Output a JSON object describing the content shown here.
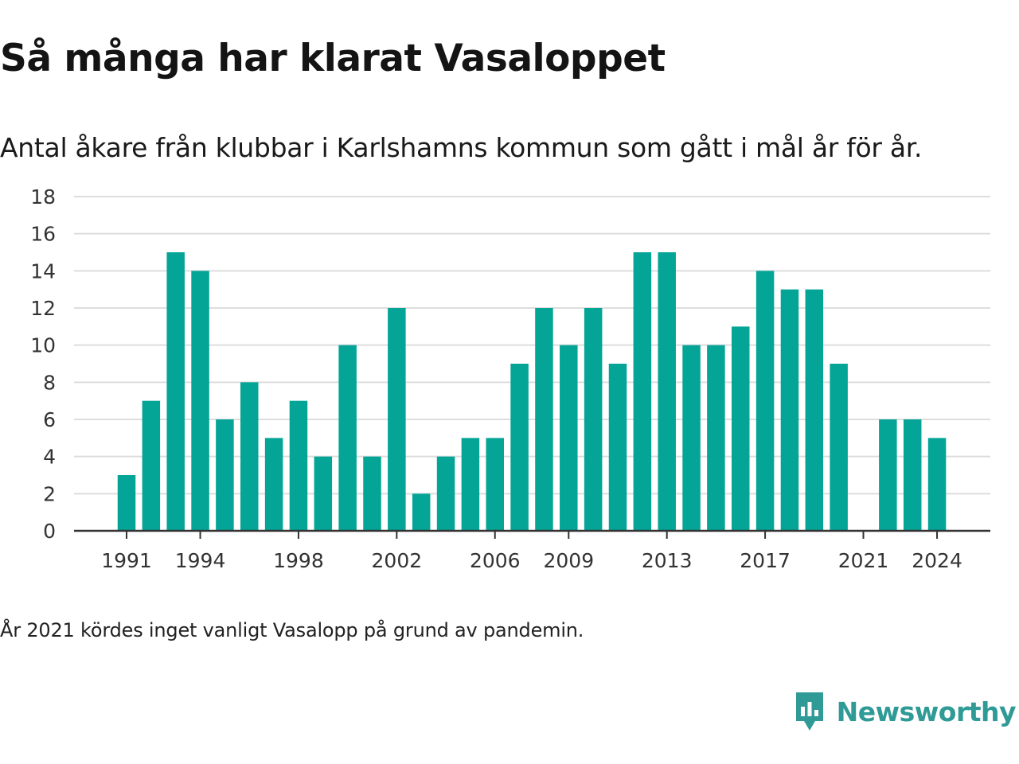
{
  "chart_data": {
    "type": "bar",
    "title": "Så många har klarat Vasaloppet",
    "subtitle": "Antal åkare från klubbar i Karlshamns kommun som gått i mål år för år.",
    "categories": [
      "1991",
      "1992",
      "1993",
      "1994",
      "1995",
      "1996",
      "1997",
      "1998",
      "1999",
      "2000",
      "2001",
      "2002",
      "2003",
      "2004",
      "2005",
      "2006",
      "2007",
      "2008",
      "2009",
      "2010",
      "2011",
      "2012",
      "2013",
      "2014",
      "2015",
      "2016",
      "2017",
      "2018",
      "2019",
      "2020",
      "2021",
      "2022",
      "2023",
      "2024"
    ],
    "values": [
      3,
      7,
      15,
      14,
      6,
      8,
      5,
      7,
      4,
      10,
      4,
      12,
      2,
      4,
      5,
      5,
      9,
      12,
      10,
      12,
      9,
      15,
      15,
      10,
      10,
      11,
      14,
      13,
      13,
      9,
      null,
      6,
      6,
      5
    ],
    "x_tick_labels": [
      "1991",
      "1994",
      "1998",
      "2002",
      "2006",
      "2009",
      "2013",
      "2017",
      "2021",
      "2024"
    ],
    "y_ticks": [
      0,
      2,
      4,
      6,
      8,
      10,
      12,
      14,
      16,
      18
    ],
    "ylim": [
      0,
      18
    ],
    "xlabel": "",
    "ylabel": "",
    "bar_color": "#04a597",
    "grid": true,
    "grid_color": "#dddddd"
  },
  "footnote": "År 2021 kördes inget vanligt Vasalopp på grund av pandemin.",
  "brand": {
    "name": "Newsworthy",
    "icon": "newsworthy-logo-icon",
    "color": "#2f9a96"
  }
}
